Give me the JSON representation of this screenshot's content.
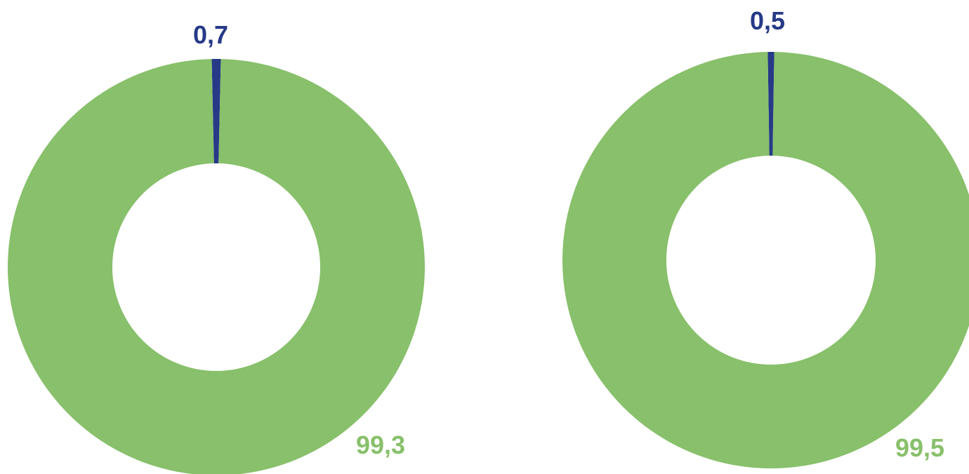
{
  "chart_data": [
    {
      "type": "pie",
      "variant": "donut",
      "slices": [
        {
          "value": 0.7,
          "label": "0,7",
          "color": "#263a87"
        },
        {
          "value": 99.3,
          "label": "99,3",
          "color": "#88c06b"
        }
      ]
    },
    {
      "type": "pie",
      "variant": "donut",
      "slices": [
        {
          "value": 0.5,
          "label": "0,5",
          "color": "#263a87"
        },
        {
          "value": 99.5,
          "label": "99,5",
          "color": "#88c06b"
        }
      ]
    }
  ]
}
